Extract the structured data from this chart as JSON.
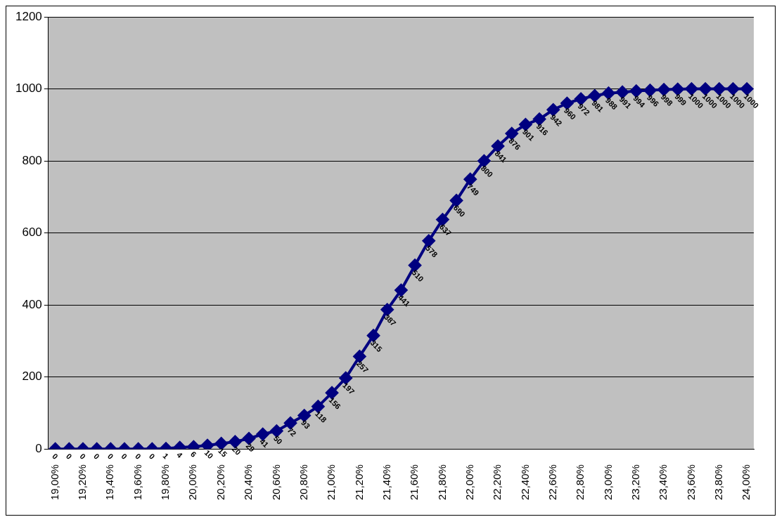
{
  "chart_data": {
    "type": "line",
    "categories": [
      "19,00%",
      null,
      "19,20%",
      null,
      "19,40%",
      null,
      "19,60%",
      null,
      "19,80%",
      null,
      "20,00%",
      null,
      "20,20%",
      null,
      "20,40%",
      null,
      "20,60%",
      null,
      "20,80%",
      null,
      "21,00%",
      null,
      "21,20%",
      null,
      "21,40%",
      null,
      "21,60%",
      null,
      "21,80%",
      null,
      "22,00%",
      null,
      "22,20%",
      null,
      "22,40%",
      null,
      "22,60%",
      null,
      "22,80%",
      null,
      "23,00%",
      null,
      "23,20%",
      null,
      "23,40%",
      null,
      "23,60%",
      null,
      "23,80%",
      null,
      "24,00%"
    ],
    "series": [
      {
        "color": "#000080",
        "values": [
          0,
          0,
          0,
          0,
          0,
          0,
          0,
          0,
          1,
          4,
          6,
          10,
          15,
          20,
          29,
          41,
          50,
          72,
          93,
          118,
          156,
          197,
          257,
          315,
          387,
          441,
          510,
          578,
          637,
          690,
          749,
          800,
          841,
          876,
          901,
          916,
          942,
          960,
          972,
          981,
          988,
          991,
          994,
          996,
          998,
          999,
          1000,
          1000,
          1000,
          1000,
          1000
        ]
      }
    ],
    "ylim": [
      0,
      1200
    ],
    "yticks": [
      0,
      200,
      400,
      600,
      800,
      1000,
      1200
    ],
    "grid": "y",
    "marker": "diamond",
    "line_style": "solid",
    "data_labels": true,
    "legend": false
  }
}
